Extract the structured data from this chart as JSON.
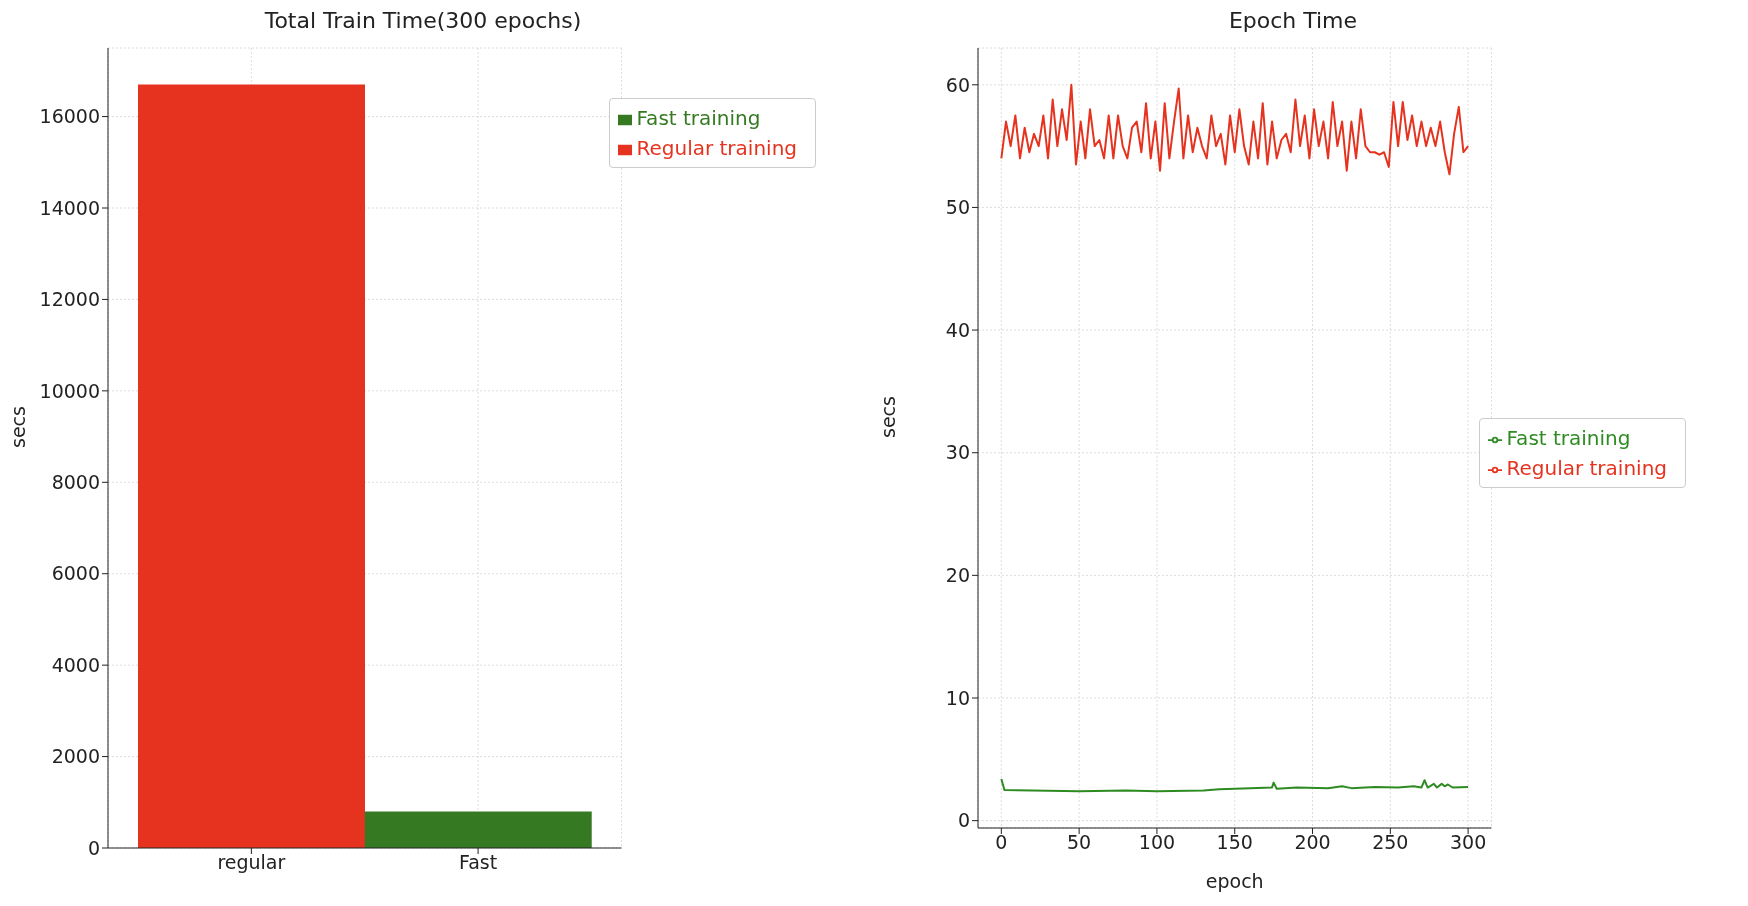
{
  "chart_data": [
    {
      "type": "bar",
      "title": "Total Train Time(300 epochs)",
      "ylabel": "secs",
      "categories": [
        "regular",
        "Fast"
      ],
      "stacked": true,
      "series": [
        {
          "name": "Regular training",
          "color": "#e6331f",
          "values": [
            16700,
            null
          ]
        },
        {
          "name": "Fast training",
          "color": "#357a23",
          "values": [
            null,
            800
          ]
        }
      ],
      "ylim": [
        0,
        17500
      ],
      "yticks": [
        0,
        2000,
        4000,
        6000,
        8000,
        10000,
        12000,
        14000,
        16000
      ],
      "grid": true,
      "legend": "top right"
    },
    {
      "type": "line",
      "title": "Epoch Time",
      "xlabel": "epoch",
      "ylabel": "secs",
      "series": [
        {
          "name": "Regular training",
          "color": "#e6331f",
          "x": [
            0,
            3,
            6,
            9,
            12,
            15,
            18,
            21,
            24,
            27,
            30,
            33,
            36,
            39,
            42,
            45,
            48,
            51,
            54,
            57,
            60,
            63,
            66,
            69,
            72,
            75,
            78,
            81,
            84,
            87,
            90,
            93,
            96,
            99,
            102,
            105,
            108,
            111,
            114,
            117,
            120,
            123,
            126,
            129,
            132,
            135,
            138,
            141,
            144,
            147,
            150,
            153,
            156,
            159,
            162,
            165,
            168,
            171,
            174,
            177,
            180,
            183,
            186,
            189,
            192,
            195,
            198,
            201,
            204,
            207,
            210,
            213,
            216,
            219,
            222,
            225,
            228,
            231,
            234,
            237,
            240,
            243,
            246,
            249,
            252,
            255,
            258,
            261,
            264,
            267,
            270,
            273,
            276,
            279,
            282,
            285,
            288,
            291,
            294,
            297,
            300
          ],
          "values": [
            54,
            57,
            55,
            57.5,
            54,
            56.5,
            54.5,
            56,
            55,
            57.5,
            54,
            58.8,
            55,
            58,
            55.5,
            60,
            53.5,
            57,
            54,
            58,
            55,
            55.5,
            54,
            57.5,
            54,
            57.5,
            55,
            54,
            56.5,
            57,
            54.5,
            58.5,
            54,
            57,
            53,
            58.5,
            54,
            57,
            59.7,
            54,
            57.5,
            54.5,
            56.5,
            55,
            54,
            57.5,
            55,
            56,
            53.5,
            57.5,
            54.5,
            58,
            55,
            53.5,
            57,
            54,
            58.5,
            53.5,
            57,
            54,
            55.5,
            56,
            54.5,
            58.8,
            55,
            57.5,
            54,
            58,
            55,
            57,
            54,
            58.6,
            55,
            57,
            53,
            57,
            54,
            58,
            55,
            54.5,
            54.5,
            54.3,
            54.5,
            53.3,
            58.6,
            55,
            58.6,
            55.5,
            57.5,
            55,
            57,
            55,
            56.5,
            55,
            57,
            54.5,
            52.7,
            56,
            58.2,
            54.5,
            55
          ]
        },
        {
          "name": "Fast training",
          "color": "#2e8b22",
          "x": [
            0,
            2,
            20,
            50,
            80,
            100,
            130,
            140,
            160,
            174,
            175,
            177,
            190,
            210,
            219,
            225,
            240,
            255,
            265,
            270,
            272,
            274,
            278,
            280,
            283,
            285,
            287,
            290,
            300
          ],
          "values": [
            3.4,
            2.5,
            2.45,
            2.4,
            2.45,
            2.4,
            2.45,
            2.55,
            2.65,
            2.7,
            3.1,
            2.6,
            2.7,
            2.65,
            2.8,
            2.65,
            2.75,
            2.7,
            2.8,
            2.7,
            3.3,
            2.7,
            3.0,
            2.7,
            3.0,
            2.8,
            2.95,
            2.7,
            2.75
          ]
        }
      ],
      "xlim": [
        -15,
        315
      ],
      "xticks": [
        0,
        50,
        100,
        150,
        200,
        250,
        300
      ],
      "ylim": [
        -0.6,
        63
      ],
      "yticks": [
        0,
        10,
        20,
        30,
        40,
        50,
        60
      ],
      "grid": true,
      "legend": "right",
      "line_style": "solid",
      "marker": "none"
    }
  ]
}
